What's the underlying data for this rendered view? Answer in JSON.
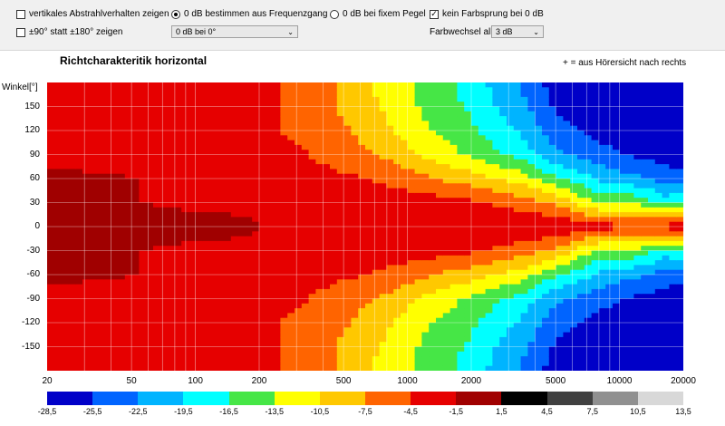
{
  "toolbar": {
    "vertical": {
      "label": "vertikales Abstrahlverhalten zeigen",
      "checked": false
    },
    "range90": {
      "label": "±90° statt ±180° zeigen",
      "checked": false
    },
    "radio_freq": {
      "label": "0 dB bestimmen aus Frequenzgang",
      "selected": true
    },
    "radio_fixed": {
      "label": "0 dB bei fixem Pegel",
      "selected": false
    },
    "ref_select": {
      "value": "0 dB bei 0°"
    },
    "nojump": {
      "label": "kein Farbsprung bei 0 dB",
      "checked": true
    },
    "farbwechsel": {
      "label": "Farbwechsel  alle",
      "value": "3 dB"
    }
  },
  "chart_data": {
    "type": "heatmap",
    "title": "Richtcharakteritik horizontal",
    "annotation": "+ = aus Hörersicht nach rechts",
    "ylabel": "Winkel[°]",
    "xscale": "log",
    "xlim": [
      20,
      20000
    ],
    "ylim": [
      -180,
      180
    ],
    "x_ticks": [
      "20",
      "50",
      "100",
      "200",
      "500",
      "1000",
      "2000",
      "5000",
      "10000",
      "20000"
    ],
    "y_ticks": [
      "150",
      "120",
      "90",
      "60",
      "30",
      "0",
      "-30",
      "-60",
      "-90",
      "-120",
      "-150"
    ],
    "colorbar": {
      "ticks": [
        "-28,5",
        "-25,5",
        "-22,5",
        "-19,5",
        "-16,5",
        "-13,5",
        "-10,5",
        "-7,5",
        "-4,5",
        "-1,5",
        "1,5",
        "4,5",
        "7,5",
        "10,5",
        "13,5"
      ],
      "colors": [
        "#0000c8",
        "#0064ff",
        "#00b4ff",
        "#00ffff",
        "#46e646",
        "#ffff00",
        "#ffc800",
        "#ff6400",
        "#e60000",
        "#a00000",
        "#000000",
        "#404040",
        "#909090",
        "#d8d8d8"
      ]
    },
    "levels_db_at_angle": {
      "x": [
        20,
        150,
        300,
        500,
        800,
        1200,
        2000,
        3500,
        5000,
        8000,
        12000,
        17000,
        20000
      ],
      "0": [
        -1,
        -1,
        -2,
        -2,
        -2,
        -2,
        -2,
        -2,
        -2,
        -3,
        -4,
        -3,
        -3
      ],
      "30": [
        -1,
        -2,
        -2,
        -3,
        -3,
        -3,
        -4,
        -6,
        -8,
        -14,
        -14,
        -18,
        -15
      ],
      "60": [
        -1,
        -2,
        -3,
        -4,
        -5,
        -7,
        -9,
        -12,
        -16,
        -20,
        -22,
        -24,
        -25
      ],
      "90": [
        -2,
        -3,
        -4,
        -6,
        -8,
        -11,
        -14,
        -18,
        -22,
        -24,
        -26,
        -27,
        -27
      ],
      "120": [
        -2,
        -3,
        -5,
        -7,
        -10,
        -13,
        -16,
        -20,
        -24,
        -27,
        -28,
        -28,
        -28
      ],
      "150": [
        -2,
        -3,
        -5,
        -8,
        -11,
        -14,
        -17,
        -22,
        -26,
        -28,
        -29,
        -29,
        -29
      ],
      "180": [
        -2,
        -3,
        -5,
        -8,
        -12,
        -14,
        -18,
        -23,
        -27,
        -28,
        -29,
        -29,
        -29
      ]
    }
  }
}
